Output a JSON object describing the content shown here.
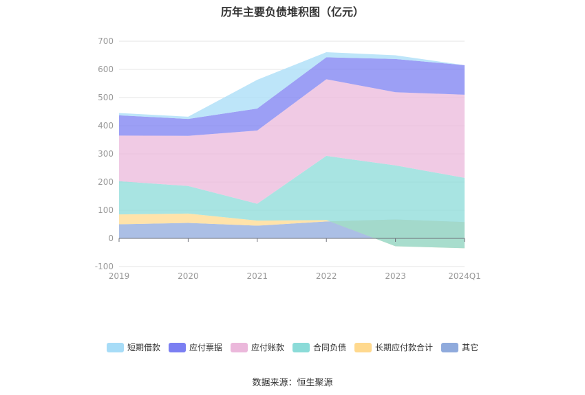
{
  "title": "历年主要负债堆积图（亿元）",
  "source": "数据来源：恒生聚源",
  "chart_data": {
    "type": "area",
    "stacked": true,
    "categories": [
      "2019",
      "2020",
      "2021",
      "2022",
      "2023",
      "2024Q1"
    ],
    "ylim": [
      -100,
      700
    ],
    "yticks": [
      -100,
      0,
      100,
      200,
      300,
      400,
      500,
      600,
      700
    ],
    "grid": true,
    "legend_position": "bottom",
    "series": [
      {
        "name": "其它",
        "color": "#8FAADC",
        "values": [
          50,
          55,
          45,
          60,
          67,
          58
        ]
      },
      {
        "name": "长期应付款合计",
        "color": "#FFD98E",
        "values": [
          35,
          33,
          18,
          5,
          -95,
          -93
        ]
      },
      {
        "name": "合同负债",
        "color": "#8BDBD8",
        "values": [
          118,
          98,
          60,
          228,
          287,
          250
        ]
      },
      {
        "name": "应付账款",
        "color": "#EBB8DB",
        "values": [
          162,
          178,
          260,
          272,
          260,
          295
        ]
      },
      {
        "name": "应付票据",
        "color": "#7B7FF2",
        "values": [
          72,
          60,
          78,
          78,
          118,
          105
        ]
      },
      {
        "name": "短期借款",
        "color": "#A7DCF7",
        "values": [
          8,
          8,
          102,
          18,
          13,
          0
        ]
      }
    ],
    "legend_order": [
      "短期借款",
      "应付票据",
      "应付账款",
      "合同负债",
      "长期应付款合计",
      "其它"
    ]
  }
}
